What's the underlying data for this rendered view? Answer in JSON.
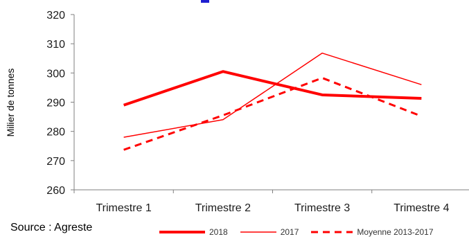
{
  "chart_data": {
    "type": "line",
    "title": "",
    "xlabel": "",
    "ylabel": "Milier  de tonnes",
    "categories": [
      "Trimestre 1",
      "Trimestre 2",
      "Trimestre 3",
      "Trimestre 4"
    ],
    "ylim": [
      260,
      320
    ],
    "yticks": [
      260,
      270,
      280,
      290,
      300,
      310,
      320
    ],
    "series": [
      {
        "name": "2018",
        "values": [
          289,
          300.5,
          292.5,
          291.3
        ],
        "color": "#ff0000",
        "style": "solid-thick"
      },
      {
        "name": "2017",
        "values": [
          278,
          284,
          306.8,
          296
        ],
        "color": "#ff0000",
        "style": "solid-thin"
      },
      {
        "name": "Moyenne 2013-2017",
        "values": [
          273.7,
          285.5,
          298.3,
          285.2
        ],
        "color": "#ff0000",
        "style": "dashed"
      }
    ],
    "grid": false,
    "legend_position": "bottom"
  },
  "footer": {
    "source": "Source : Agreste"
  }
}
